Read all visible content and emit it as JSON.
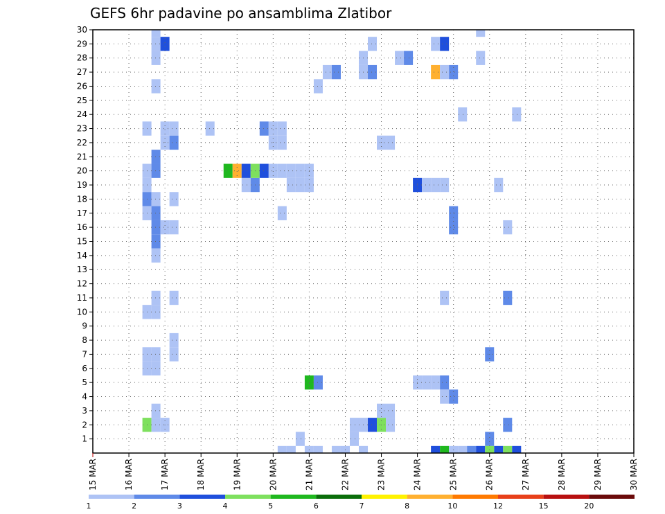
{
  "chart_data": {
    "type": "heatmap",
    "title": "GEFS 6hr padavine po ansamblima Zlatibor",
    "xlabel": "",
    "ylabel": "",
    "x_ticks": [
      "15 MAR",
      "16 MAR",
      "17 MAR",
      "18 MAR",
      "19 MAR",
      "20 MAR",
      "21 MAR",
      "22 MAR",
      "23 MAR",
      "24 MAR",
      "25 MAR",
      "26 MAR",
      "27 MAR",
      "28 MAR",
      "29 MAR",
      "30 MAR"
    ],
    "x_unit": "6hr steps from 15 MAR 00Z",
    "xlim": [
      0,
      60
    ],
    "y_ticks": [
      1,
      2,
      3,
      4,
      5,
      6,
      7,
      8,
      9,
      10,
      11,
      12,
      13,
      14,
      15,
      16,
      17,
      18,
      19,
      20,
      21,
      22,
      23,
      24,
      25,
      26,
      27,
      28,
      29,
      30
    ],
    "ylim": [
      0,
      30
    ],
    "grid": true,
    "colorbar": {
      "levels": [
        "1",
        "2",
        "3",
        "4",
        "5",
        "6",
        "7",
        "8",
        "10",
        "12",
        "15",
        "20"
      ],
      "colors": [
        "#aec3f5",
        "#5f8ae8",
        "#1f4fdc",
        "#7ee05e",
        "#1fb81f",
        "#0a6e0a",
        "#fff200",
        "#ffb030",
        "#ff7a00",
        "#e8401a",
        "#b81010",
        "#6b0a0a"
      ]
    },
    "cells": [
      [
        7,
        30,
        1
      ],
      [
        7,
        29,
        1
      ],
      [
        8,
        29,
        3
      ],
      [
        7,
        28,
        1
      ],
      [
        7,
        26,
        1
      ],
      [
        6,
        23,
        1
      ],
      [
        8,
        23,
        1
      ],
      [
        9,
        23,
        1
      ],
      [
        8,
        22,
        1
      ],
      [
        9,
        22,
        2
      ],
      [
        7,
        21,
        2
      ],
      [
        6,
        20,
        1
      ],
      [
        7,
        20,
        2
      ],
      [
        6,
        19,
        1
      ],
      [
        6,
        18,
        2
      ],
      [
        7,
        18,
        1
      ],
      [
        9,
        18,
        1
      ],
      [
        6,
        17,
        1
      ],
      [
        7,
        17,
        2
      ],
      [
        7,
        16,
        2
      ],
      [
        8,
        16,
        1
      ],
      [
        9,
        16,
        1
      ],
      [
        7,
        15,
        2
      ],
      [
        7,
        14,
        1
      ],
      [
        7,
        11,
        1
      ],
      [
        9,
        11,
        1
      ],
      [
        6,
        10,
        1
      ],
      [
        7,
        10,
        1
      ],
      [
        9,
        8,
        1
      ],
      [
        6,
        7,
        1
      ],
      [
        7,
        7,
        1
      ],
      [
        9,
        7,
        1
      ],
      [
        6,
        6,
        1
      ],
      [
        7,
        6,
        1
      ],
      [
        7,
        3,
        1
      ],
      [
        6,
        2,
        4
      ],
      [
        7,
        2,
        1
      ],
      [
        8,
        2,
        1
      ],
      [
        13,
        23,
        1
      ],
      [
        19,
        23,
        2
      ],
      [
        20,
        23,
        1
      ],
      [
        21,
        23,
        1
      ],
      [
        20,
        22,
        1
      ],
      [
        21,
        22,
        1
      ],
      [
        17,
        19,
        1
      ],
      [
        18,
        19,
        2
      ],
      [
        21,
        17,
        1
      ],
      [
        29,
        1,
        1
      ],
      [
        28,
        0,
        1
      ],
      [
        22,
        20,
        1
      ],
      [
        22,
        19,
        1
      ],
      [
        23,
        20,
        1
      ],
      [
        23,
        19,
        1
      ],
      [
        24,
        20,
        1
      ],
      [
        24,
        19,
        1
      ],
      [
        15,
        20,
        5
      ],
      [
        16,
        20,
        8
      ],
      [
        17,
        20,
        3
      ],
      [
        18,
        20,
        4
      ],
      [
        19,
        20,
        3
      ],
      [
        20,
        20,
        1
      ],
      [
        21,
        20,
        1
      ],
      [
        30,
        27,
        1
      ],
      [
        31,
        27,
        2
      ],
      [
        32,
        22,
        1
      ],
      [
        33,
        22,
        1
      ],
      [
        31,
        29,
        1
      ],
      [
        30,
        28,
        1
      ],
      [
        23,
        1,
        1
      ],
      [
        24,
        0,
        1
      ],
      [
        25,
        0,
        1
      ],
      [
        21,
        0,
        1
      ],
      [
        22,
        0,
        1
      ],
      [
        24,
        5,
        5
      ],
      [
        25,
        5,
        2
      ],
      [
        30,
        0,
        1
      ],
      [
        27,
        0,
        1
      ],
      [
        29,
        2,
        1
      ],
      [
        30,
        2,
        1
      ],
      [
        31,
        2,
        3
      ],
      [
        32,
        2,
        4
      ],
      [
        33,
        2,
        1
      ],
      [
        33,
        3,
        1
      ],
      [
        32,
        3,
        1
      ],
      [
        34,
        28,
        1
      ],
      [
        35,
        28,
        2
      ],
      [
        36,
        5,
        1
      ],
      [
        37,
        5,
        1
      ],
      [
        38,
        5,
        1
      ],
      [
        39,
        5,
        2
      ],
      [
        39,
        4,
        1
      ],
      [
        40,
        4,
        2
      ],
      [
        36,
        19,
        3
      ],
      [
        37,
        19,
        1
      ],
      [
        38,
        19,
        1
      ],
      [
        39,
        19,
        1
      ],
      [
        40,
        17,
        2
      ],
      [
        40,
        16,
        2
      ],
      [
        39,
        11,
        1
      ],
      [
        38,
        29,
        1
      ],
      [
        39,
        29,
        3
      ],
      [
        38,
        27,
        8
      ],
      [
        39,
        27,
        1
      ],
      [
        40,
        27,
        2
      ],
      [
        41,
        24,
        1
      ],
      [
        43,
        30,
        1
      ],
      [
        43,
        28,
        1
      ],
      [
        44,
        1,
        2
      ],
      [
        45,
        0,
        3
      ],
      [
        46,
        0,
        4
      ],
      [
        38,
        0,
        3
      ],
      [
        39,
        0,
        5
      ],
      [
        40,
        0,
        1
      ],
      [
        41,
        0,
        1
      ],
      [
        42,
        0,
        2
      ],
      [
        43,
        0,
        3
      ],
      [
        44,
        0,
        4
      ],
      [
        45,
        19,
        1
      ],
      [
        46,
        16,
        1
      ],
      [
        46,
        11,
        2
      ],
      [
        46,
        2,
        2
      ],
      [
        44,
        7,
        2
      ],
      [
        47,
        24,
        1
      ],
      [
        47,
        0,
        3
      ],
      [
        25,
        26,
        1
      ],
      [
        26,
        27,
        1
      ],
      [
        27,
        27,
        2
      ]
    ]
  }
}
